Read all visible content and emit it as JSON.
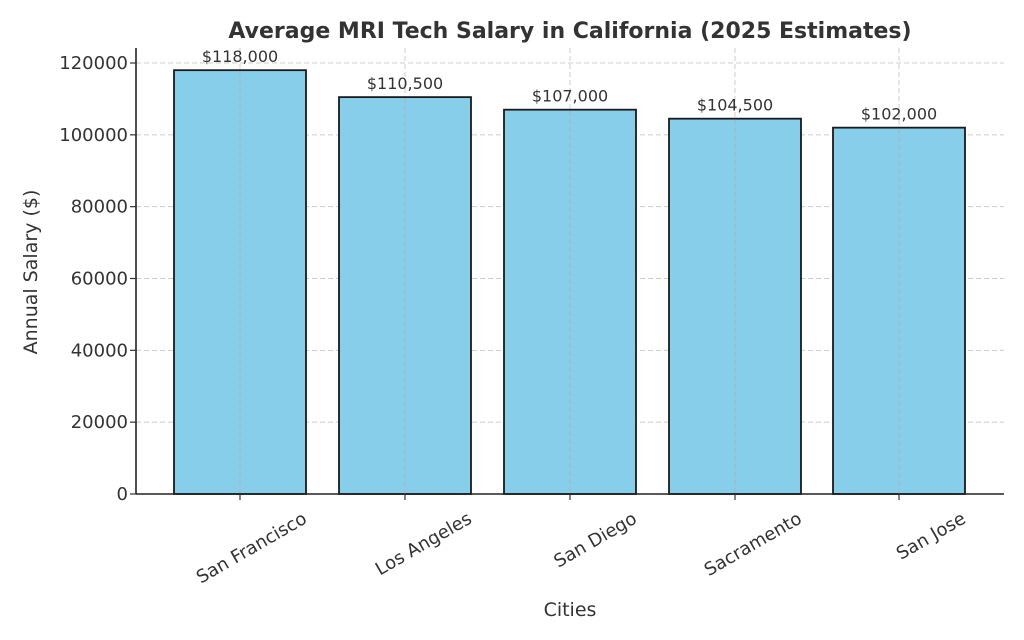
{
  "chart_data": {
    "type": "bar",
    "title": "Average MRI Tech Salary in California (2025 Estimates)",
    "xlabel": "Cities",
    "ylabel": "Annual Salary ($)",
    "categories": [
      "San Francisco",
      "Los Angeles",
      "San Diego",
      "Sacramento",
      "San Jose"
    ],
    "values": [
      118000,
      110500,
      107000,
      104500,
      102000
    ],
    "data_labels": [
      "$118,000",
      "$110,500",
      "$107,000",
      "$104,500",
      "$102,000"
    ],
    "yticks": [
      0,
      20000,
      40000,
      60000,
      80000,
      100000,
      120000
    ],
    "ytick_labels": [
      "0",
      "20000",
      "40000",
      "60000",
      "80000",
      "100000",
      "120000"
    ],
    "ylim": [
      0,
      124000
    ],
    "grid": true,
    "colors": {
      "bar_fill": "#87ceeb",
      "bar_edge": "#1a1a1a",
      "text": "#333333"
    }
  }
}
